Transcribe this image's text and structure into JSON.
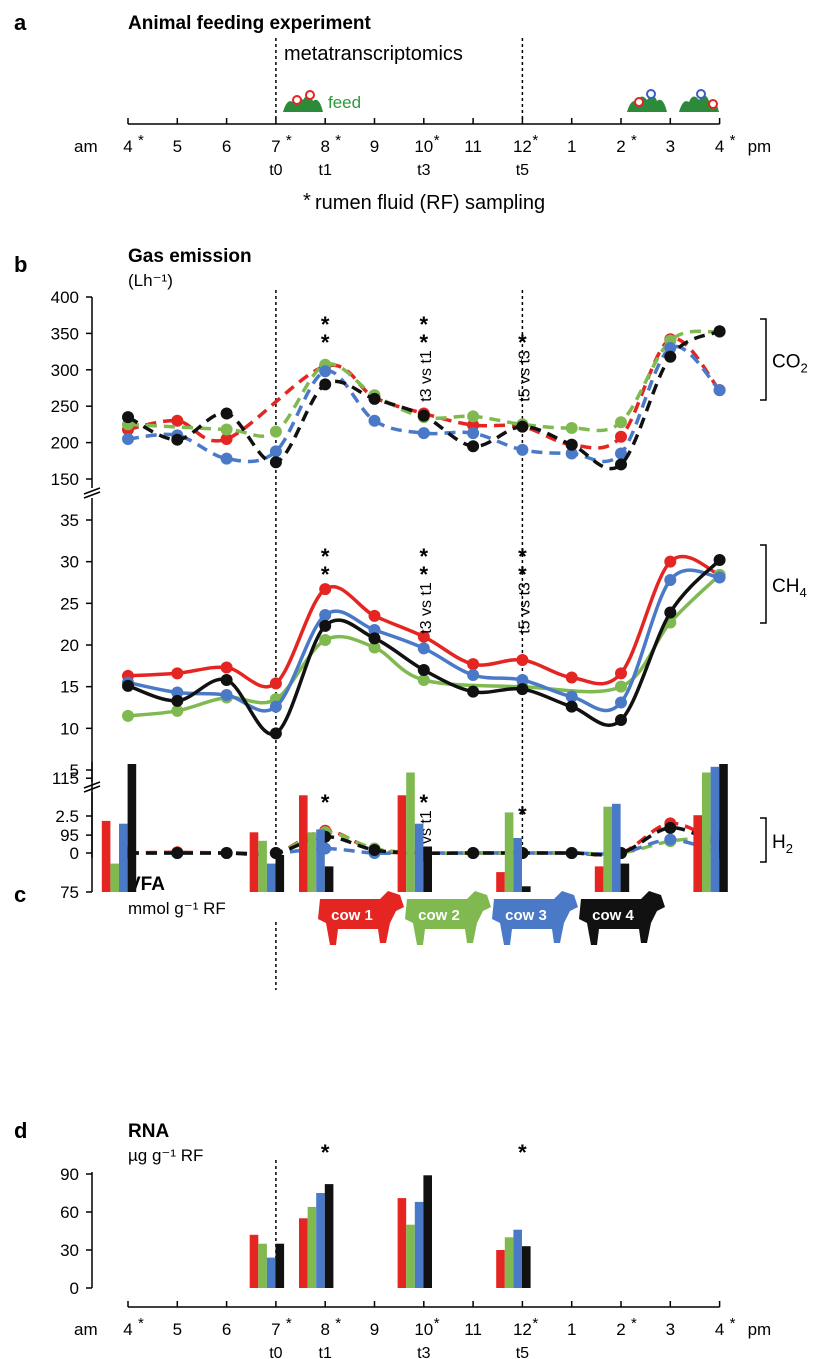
{
  "colors": {
    "cow1": "#e52521",
    "cow2": "#7fb950",
    "cow3": "#4a79c8",
    "cow4": "#111111"
  },
  "panel_a": {
    "letter": "a",
    "title": "Animal feeding experiment",
    "span_label": "metatranscriptomics",
    "feed_label": "feed",
    "am": "am",
    "pm": "pm",
    "hours": [
      "4",
      "5",
      "6",
      "7",
      "8",
      "9",
      "10",
      "11",
      "12",
      "1",
      "2",
      "3",
      "4"
    ],
    "sampled": [
      0,
      3,
      4,
      6,
      8,
      10,
      12
    ],
    "t_labels": {
      "3": "t0",
      "4": "t1",
      "6": "t3",
      "8": "t5"
    },
    "footnote_star": "*",
    "footnote": "rumen fluid (RF) sampling"
  },
  "cows": [
    "cow 1",
    "cow 2",
    "cow 3",
    "cow 4"
  ],
  "chart_data": [
    {
      "type": "line",
      "panel": "b",
      "title": "Gas emission",
      "unit": "(Lh⁻¹)",
      "x": [
        "4",
        "5",
        "6",
        "7",
        "8",
        "9",
        "10",
        "11",
        "12",
        "1",
        "2",
        "3",
        "4"
      ],
      "subplots": [
        {
          "gas": "CO₂",
          "gas_base": "CO",
          "gas_sub": "2",
          "style": "dashed",
          "ylim": [
            150,
            400
          ],
          "yticks": [
            150,
            200,
            250,
            300,
            350,
            400
          ],
          "series": [
            {
              "name": "cow 1",
              "values": [
                218,
                230,
                205,
                null,
                305,
                262,
                240,
                224,
                222,
                197,
                208,
                342,
                272
              ]
            },
            {
              "name": "cow 2",
              "values": [
                225,
                null,
                218,
                215,
                307,
                265,
                235,
                236,
                225,
                220,
                228,
                340,
                352
              ]
            },
            {
              "name": "cow 3",
              "values": [
                205,
                210,
                178,
                188,
                298,
                230,
                213,
                213,
                190,
                185,
                185,
                330,
                272
              ]
            },
            {
              "name": "cow 4",
              "values": [
                235,
                204,
                240,
                173,
                280,
                260,
                237,
                195,
                222,
                197,
                170,
                318,
                353
              ]
            }
          ],
          "stars": [
            {
              "x": 4,
              "text": "**",
              "note": ""
            },
            {
              "x": 6,
              "text": "**",
              "note": "t3 vs t1"
            },
            {
              "x": 8,
              "text": "*",
              "note": "t5 vs t3"
            }
          ]
        },
        {
          "gas": "CH₄",
          "gas_base": "CH",
          "gas_sub": "4",
          "style": "solid",
          "ylim": [
            5,
            35
          ],
          "yticks": [
            5,
            10,
            15,
            20,
            25,
            30,
            35
          ],
          "series": [
            {
              "name": "cow 1",
              "values": [
                16.3,
                16.6,
                17.3,
                15.4,
                26.7,
                23.5,
                21.0,
                17.7,
                18.2,
                16.1,
                16.6,
                30.0,
                28.4
              ]
            },
            {
              "name": "cow 2",
              "values": [
                11.5,
                12.1,
                13.7,
                13.5,
                20.6,
                19.7,
                15.8,
                null,
                15.0,
                null,
                15.0,
                22.7,
                28.4
              ]
            },
            {
              "name": "cow 3",
              "values": [
                15.5,
                14.3,
                14.0,
                12.6,
                23.6,
                21.8,
                19.6,
                16.4,
                15.8,
                13.8,
                13.1,
                27.8,
                28.1
              ]
            },
            {
              "name": "cow 4",
              "values": [
                15.1,
                13.3,
                15.8,
                9.4,
                22.3,
                20.8,
                17.0,
                14.4,
                14.7,
                12.6,
                11.0,
                23.9,
                30.2
              ]
            }
          ],
          "stars": [
            {
              "x": 4,
              "text": "**",
              "note": ""
            },
            {
              "x": 6,
              "text": "**",
              "note": "t3 vs t1"
            },
            {
              "x": 8,
              "text": "**",
              "note": "t5 vs t3"
            }
          ]
        },
        {
          "gas": "H₂",
          "gas_base": "H",
          "gas_sub": "2",
          "style": "dashed",
          "ylim": [
            0,
            2.5
          ],
          "yticks": [
            0,
            2.5
          ],
          "series": [
            {
              "name": "cow 1",
              "values": [
                0,
                0.05,
                0,
                0,
                1.5,
                0.2,
                0,
                0,
                0,
                0,
                0,
                2.0,
                0.6
              ]
            },
            {
              "name": "cow 2",
              "values": [
                0,
                0,
                0,
                0,
                1.4,
                0.3,
                0,
                0,
                0,
                0,
                0,
                0.8,
                1.1
              ]
            },
            {
              "name": "cow 3",
              "values": [
                0,
                0,
                0,
                0,
                0.3,
                0,
                0,
                0,
                0,
                0,
                0,
                0.9,
                0
              ]
            },
            {
              "name": "cow 4",
              "values": [
                0,
                0,
                0,
                0,
                1.1,
                0.2,
                0,
                0,
                0,
                0,
                0,
                1.7,
                0.5
              ]
            }
          ],
          "stars": [
            {
              "x": 4,
              "text": "*",
              "note": ""
            },
            {
              "x": 6,
              "text": "*",
              "note": "t3 vs t1"
            }
          ]
        }
      ]
    },
    {
      "type": "bar",
      "panel": "c",
      "title": "VFA",
      "unit": "mmol g⁻¹ RF",
      "ylim": [
        75,
        120
      ],
      "yticks": [
        75,
        95,
        115
      ],
      "categories": [
        "4",
        "7",
        "8",
        "10",
        "12",
        "2",
        "4"
      ],
      "category_x": [
        0,
        3,
        4,
        6,
        8,
        10,
        12
      ],
      "series": [
        {
          "name": "cow 1",
          "values": [
            100,
            96,
            109,
            109,
            82,
            84,
            102
          ]
        },
        {
          "name": "cow 2",
          "values": [
            85,
            93,
            96,
            117,
            103,
            105,
            117
          ]
        },
        {
          "name": "cow 3",
          "values": [
            99,
            85,
            97,
            99,
            94,
            106,
            119
          ]
        },
        {
          "name": "cow 4",
          "values": [
            120,
            88,
            84,
            91,
            77,
            85,
            120
          ]
        }
      ],
      "stars": [
        {
          "x": 8,
          "text": "*"
        }
      ]
    },
    {
      "type": "bar",
      "panel": "d",
      "title": "RNA",
      "unit": "µg g⁻¹ RF",
      "ylim": [
        0,
        90
      ],
      "yticks": [
        0,
        30,
        60,
        90
      ],
      "categories": [
        "7",
        "8",
        "10",
        "12"
      ],
      "category_x": [
        3,
        4,
        6,
        8
      ],
      "series": [
        {
          "name": "cow 1",
          "values": [
            42,
            55,
            71,
            30
          ]
        },
        {
          "name": "cow 2",
          "values": [
            35,
            64,
            50,
            40
          ]
        },
        {
          "name": "cow 3",
          "values": [
            24,
            75,
            68,
            46
          ]
        },
        {
          "name": "cow 4",
          "values": [
            35,
            82,
            89,
            33
          ]
        }
      ],
      "stars": [
        {
          "x": 4,
          "text": "*"
        },
        {
          "x": 8,
          "text": "*"
        }
      ]
    }
  ]
}
